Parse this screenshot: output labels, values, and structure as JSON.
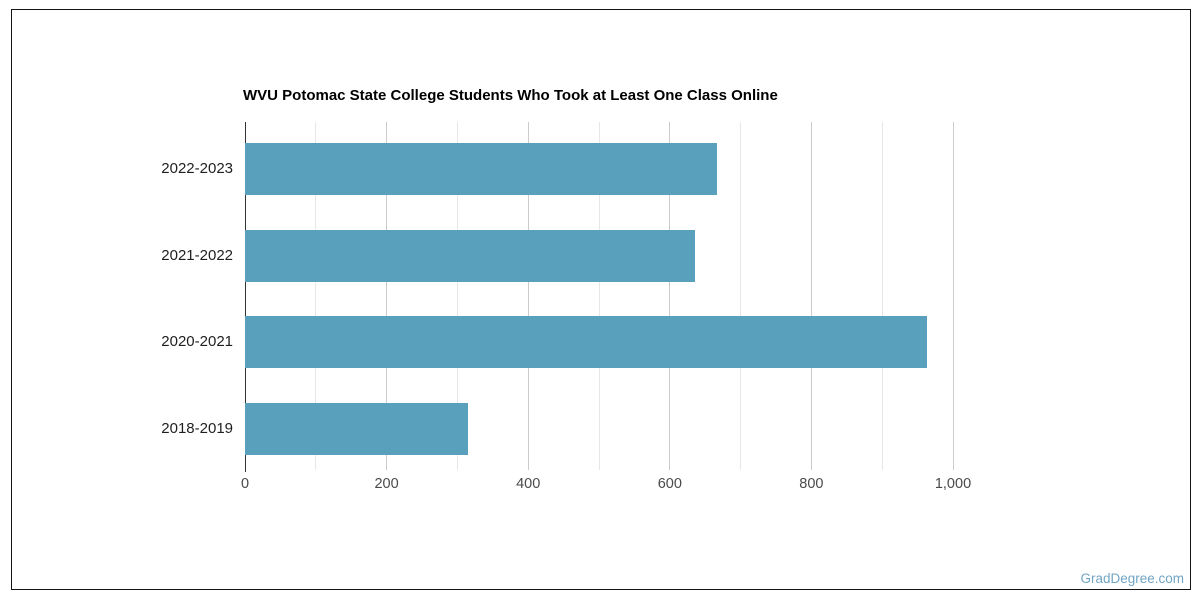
{
  "page": {
    "watermark": "GradDegree.com",
    "colors": {
      "bar": "#58A0BC",
      "watermark": "#72A5C4",
      "frame_border": "#141414",
      "grid_major": "#cccccc",
      "grid_minor": "#e7e7e7",
      "axis_line": "#333333",
      "title_text": "#000000",
      "category_text": "#1f1f1f",
      "tick_text": "#4a4a4a"
    }
  },
  "chart_data": {
    "type": "bar",
    "orientation": "horizontal",
    "title": "WVU Potomac State College Students Who Took at Least One Class Online",
    "categories": [
      "2022-2023",
      "2021-2022",
      "2020-2021",
      "2018-2019"
    ],
    "values": [
      667,
      636,
      963,
      315
    ],
    "xlabel": "",
    "ylabel": "",
    "xlim": [
      0,
      1000
    ],
    "xticks": [
      0,
      200,
      400,
      600,
      800,
      1000
    ],
    "xtick_labels": [
      "0",
      "200",
      "400",
      "600",
      "800",
      "1,000"
    ],
    "gridlines": {
      "minor_every": 100,
      "major_every": 200,
      "show": true
    },
    "legend": "none"
  }
}
